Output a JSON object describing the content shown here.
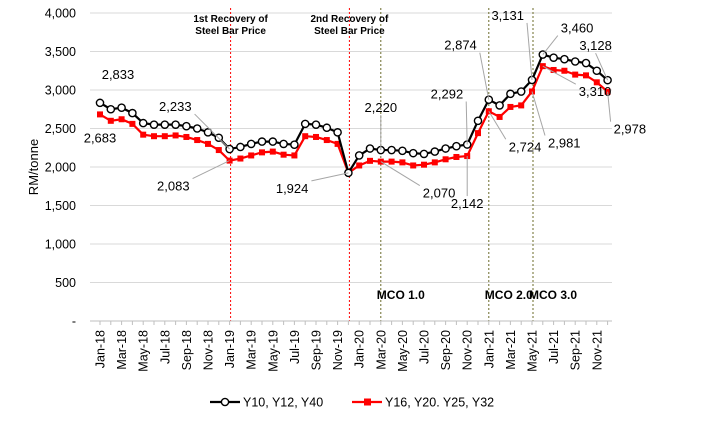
{
  "chart_data": {
    "type": "line",
    "ylabel": "RM/tonne",
    "xlabel": "",
    "ylim": [
      0,
      4000
    ],
    "yticks": [
      0,
      500,
      1000,
      1500,
      2000,
      2500,
      3000,
      3500,
      4000
    ],
    "ytick_labels": [
      "-",
      "500",
      "1,000",
      "1,500",
      "2,000",
      "2,500",
      "3,000",
      "3,500",
      "4,000"
    ],
    "x": [
      "Jan-18",
      "Feb-18",
      "Mar-18",
      "Apr-18",
      "May-18",
      "Jun-18",
      "Jul-18",
      "Aug-18",
      "Sep-18",
      "Oct-18",
      "Nov-18",
      "Dec-18",
      "Jan-19",
      "Feb-19",
      "Mar-19",
      "Apr-19",
      "May-19",
      "Jun-19",
      "Jul-19",
      "Aug-19",
      "Sep-19",
      "Oct-19",
      "Nov-19",
      "Dec-19",
      "Jan-20",
      "Feb-20",
      "Mar-20",
      "Apr-20",
      "May-20",
      "Jun-20",
      "Jul-20",
      "Aug-20",
      "Sep-20",
      "Oct-20",
      "Nov-20",
      "Dec-20",
      "Jan-21",
      "Feb-21",
      "Mar-21",
      "Apr-21",
      "May-21",
      "Jun-21",
      "Jul-21",
      "Aug-21",
      "Sep-21",
      "Oct-21",
      "Nov-21",
      "Dec-21"
    ],
    "tick_labels": [
      "Jan-18",
      "Mar-18",
      "May-18",
      "Jul-18",
      "Sep-18",
      "Nov-18",
      "Jan-19",
      "Mar-19",
      "May-19",
      "Jul-19",
      "Sep-19",
      "Nov-19",
      "Jan-20",
      "Mar-20",
      "May-20",
      "Jul-20",
      "Sep-20",
      "Nov-20",
      "Jan-21",
      "Mar-21",
      "May-21",
      "Jul-21",
      "Sep-21",
      "Nov-21"
    ],
    "series": [
      {
        "name": "Y10, Y12, Y40",
        "color": "#000000",
        "marker": "circle-open",
        "values": [
          2833,
          2750,
          2770,
          2700,
          2570,
          2550,
          2550,
          2550,
          2530,
          2500,
          2450,
          2380,
          2233,
          2260,
          2300,
          2330,
          2330,
          2300,
          2290,
          2560,
          2550,
          2510,
          2450,
          1924,
          2150,
          2240,
          2220,
          2220,
          2210,
          2180,
          2170,
          2200,
          2240,
          2270,
          2292,
          2600,
          2874,
          2800,
          2950,
          2980,
          3131,
          3460,
          3420,
          3400,
          3370,
          3350,
          3250,
          3128
        ]
      },
      {
        "name": "Y16, Y20. Y25, Y32",
        "color": "#ff0000",
        "marker": "square",
        "values": [
          2683,
          2600,
          2620,
          2560,
          2420,
          2400,
          2400,
          2410,
          2390,
          2350,
          2300,
          2220,
          2083,
          2110,
          2150,
          2190,
          2200,
          2160,
          2150,
          2400,
          2390,
          2350,
          2300,
          1924,
          2020,
          2080,
          2070,
          2070,
          2060,
          2020,
          2030,
          2060,
          2100,
          2130,
          2142,
          2440,
          2724,
          2650,
          2780,
          2800,
          2981,
          3310,
          3260,
          3250,
          3200,
          3190,
          3100,
          2978
        ]
      }
    ],
    "data_labels": [
      {
        "text": "2,833",
        "series": 0,
        "index": 0
      },
      {
        "text": "2,683",
        "series": 1,
        "index": 0
      },
      {
        "text": "2,233",
        "series": 0,
        "index": 12
      },
      {
        "text": "2,083",
        "series": 1,
        "index": 12
      },
      {
        "text": "1,924",
        "series": 1,
        "index": 23
      },
      {
        "text": "2,220",
        "series": 0,
        "index": 26
      },
      {
        "text": "2,070",
        "series": 1,
        "index": 26
      },
      {
        "text": "2,292",
        "series": 0,
        "index": 34
      },
      {
        "text": "2,142",
        "series": 1,
        "index": 34
      },
      {
        "text": "2,874",
        "series": 0,
        "index": 36
      },
      {
        "text": "2,724",
        "series": 1,
        "index": 36
      },
      {
        "text": "3,131",
        "series": 0,
        "index": 40
      },
      {
        "text": "2,981",
        "series": 1,
        "index": 40
      },
      {
        "text": "3,460",
        "series": 0,
        "index": 41
      },
      {
        "text": "3,310",
        "series": 1,
        "index": 41
      },
      {
        "text": "3,128",
        "series": 0,
        "index": 47
      },
      {
        "text": "2,978",
        "series": 1,
        "index": 47
      }
    ],
    "annotations": [
      {
        "lines": [
          "1st Recovery of",
          "Steel Bar Price"
        ],
        "at_index": 12,
        "color": "#ff0000"
      },
      {
        "lines": [
          "2nd Recovery of",
          "Steel Bar Price"
        ],
        "at_index": 23,
        "color": "#ff0000"
      }
    ],
    "events": [
      {
        "label": "MCO 1.0",
        "at_index": 26,
        "color": "#6b6b2a"
      },
      {
        "label": "MCO 2.0",
        "at_index": 36,
        "color": "#6b6b2a"
      },
      {
        "label": "MCO 3.0",
        "at_index": 40,
        "color": "#6b6b2a"
      }
    ],
    "legend": "bottom",
    "grid": "horizontal"
  }
}
